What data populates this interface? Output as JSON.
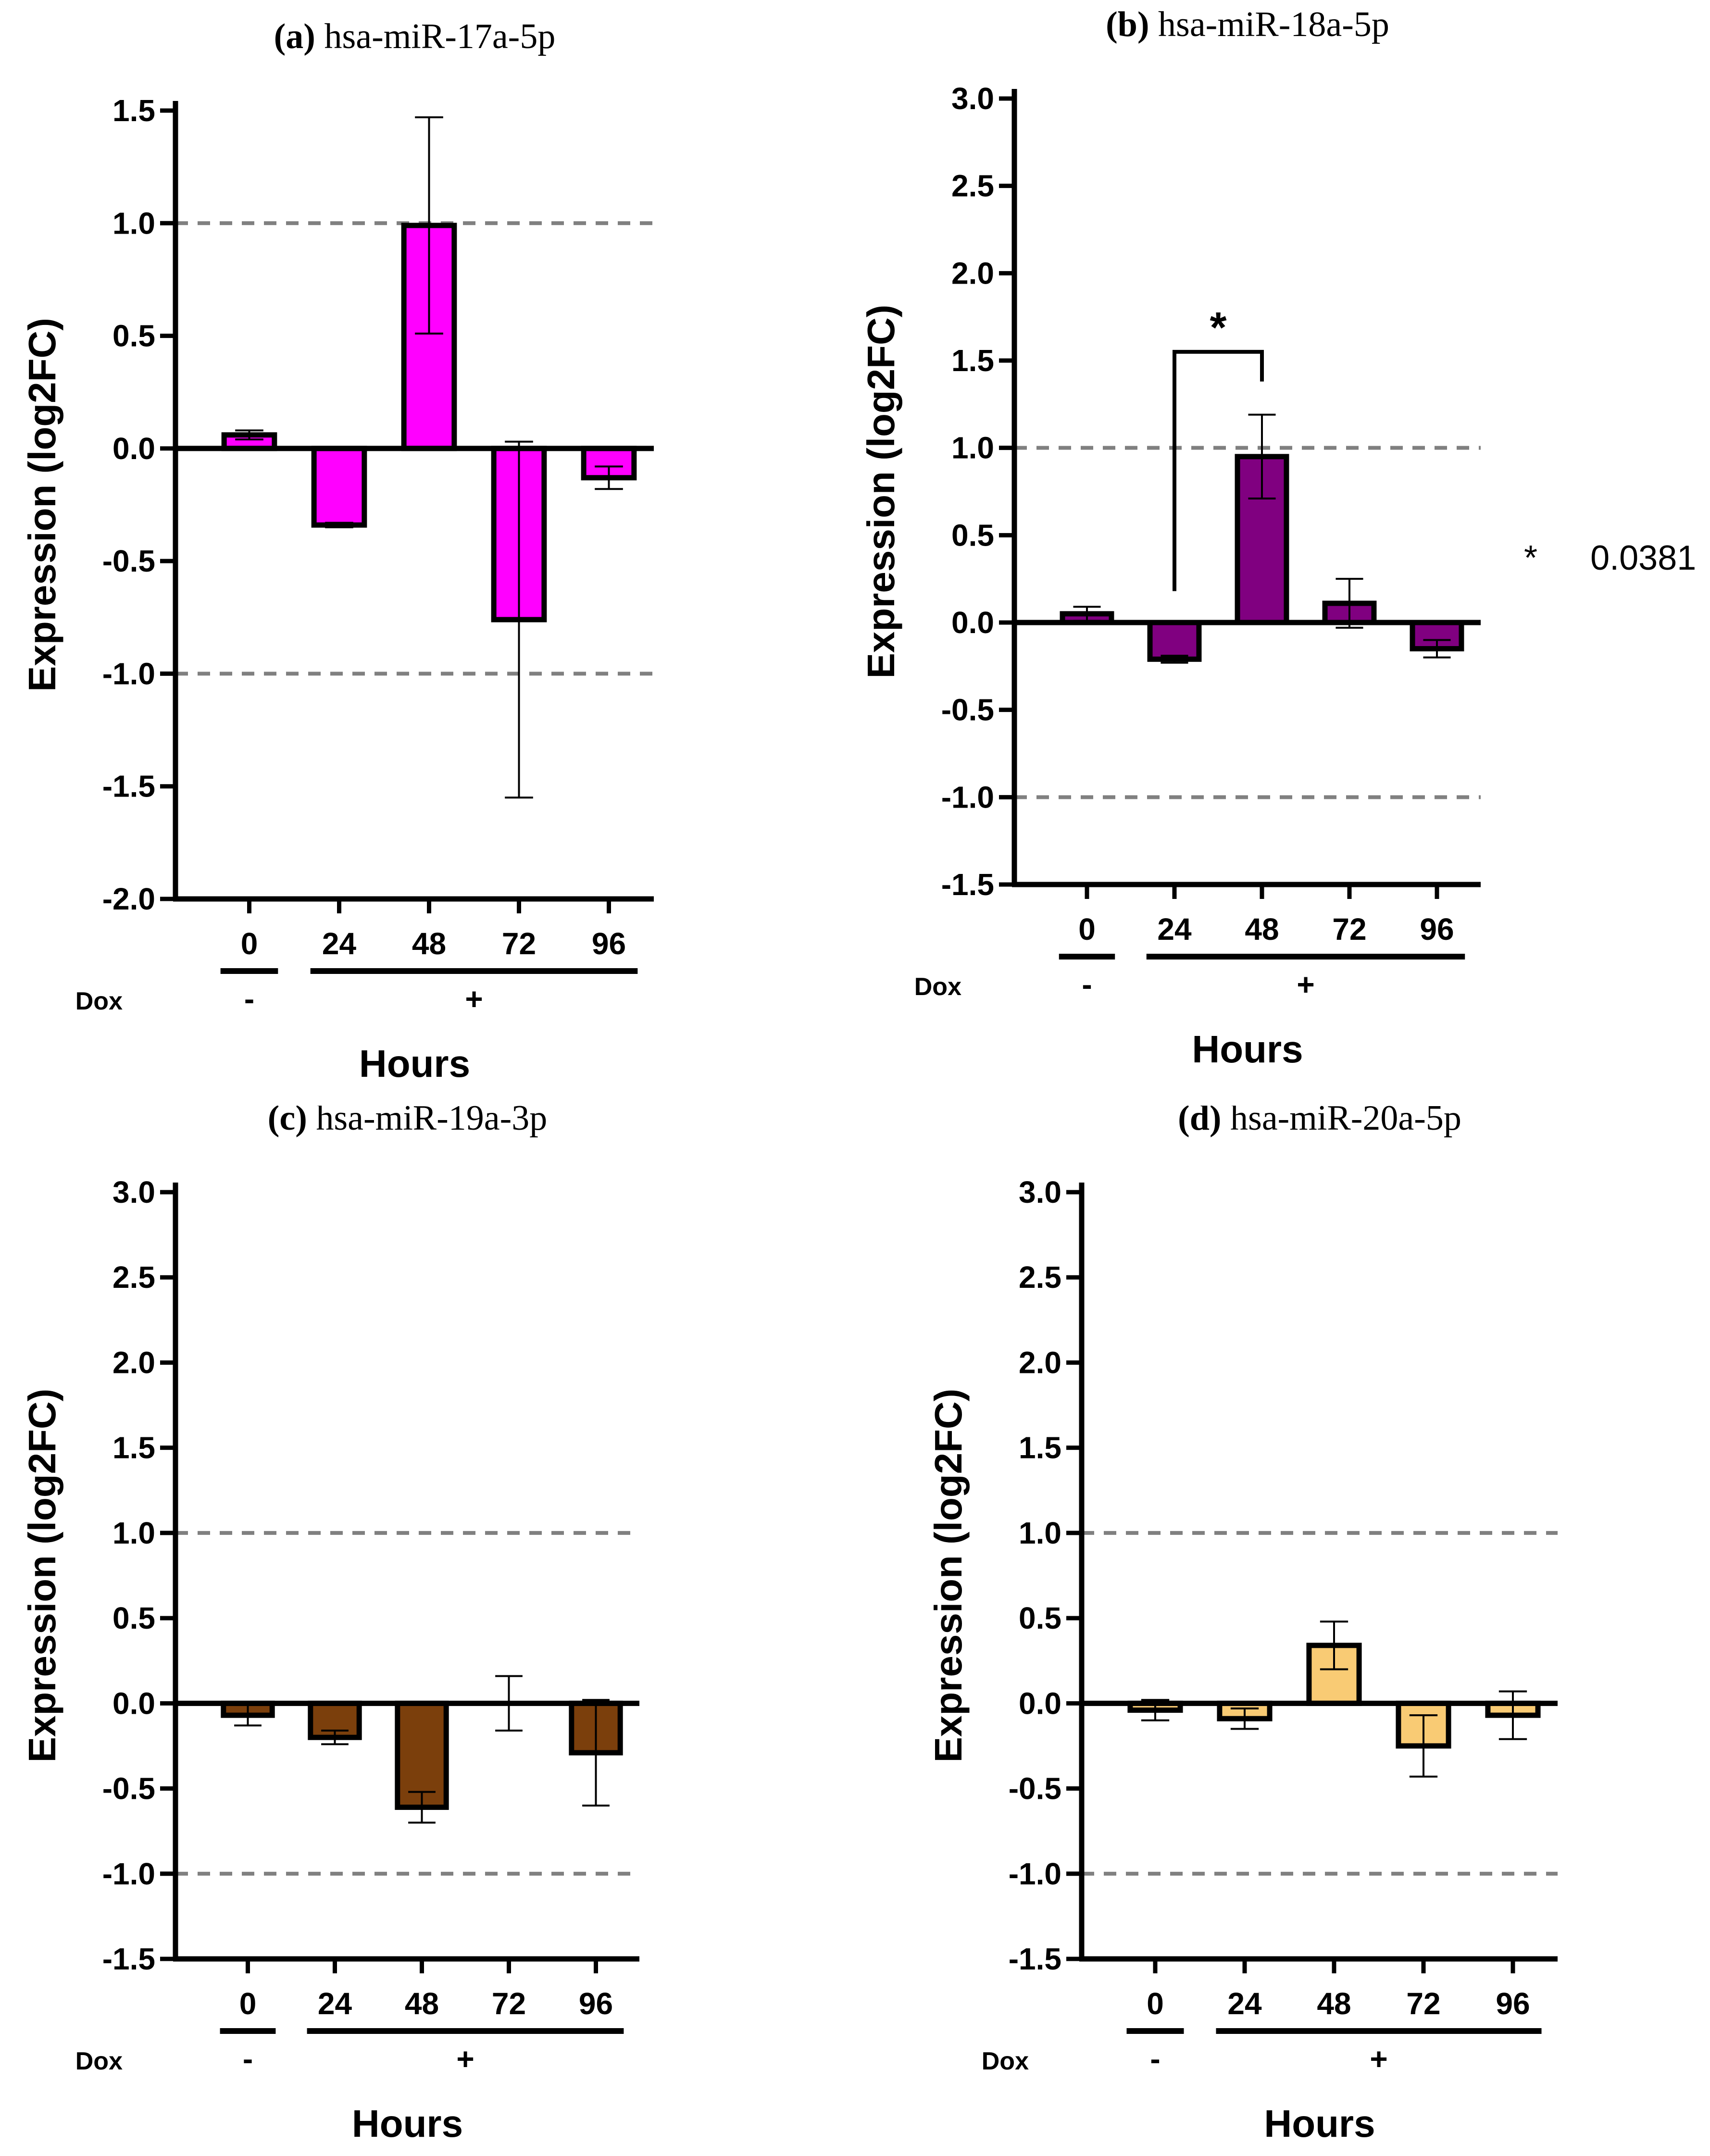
{
  "figure": {
    "hours_label": "Hours",
    "ylabel": "Expression (log2FC)",
    "dox_label": "Dox",
    "dox_minus": "-",
    "dox_plus": "+",
    "significance_note": {
      "symbol": "*",
      "value": "0.0381"
    }
  },
  "chart_data": [
    {
      "type": "bar",
      "panel": "a",
      "panel_label": "(a)",
      "title": "hsa-miR-17a-5p",
      "xlabel": "Hours",
      "ylabel": "Expression (log2FC)",
      "categories": [
        "0",
        "24",
        "48",
        "72",
        "96"
      ],
      "values": [
        0.06,
        -0.34,
        0.99,
        -0.76,
        -0.13
      ],
      "errors": [
        0.02,
        0.01,
        0.48,
        0.79,
        0.05
      ],
      "ylim": [
        -2.0,
        1.5
      ],
      "yticks": [
        "1.5",
        "1.0",
        "0.5",
        "0.0",
        "-0.5",
        "-1.0",
        "-1.5",
        "-2.0"
      ],
      "reference_lines": [
        1.0,
        -1.0
      ],
      "bar_color": "#ff00ff",
      "dox": [
        "-",
        "+",
        "+",
        "+",
        "+"
      ]
    },
    {
      "type": "bar",
      "panel": "b",
      "panel_label": "(b)",
      "title": "hsa-miR-18a-5p",
      "xlabel": "Hours",
      "ylabel": "Expression (log2FC)",
      "categories": [
        "0",
        "24",
        "48",
        "72",
        "96"
      ],
      "values": [
        0.05,
        -0.21,
        0.95,
        0.11,
        -0.15
      ],
      "errors": [
        0.04,
        0.02,
        0.24,
        0.14,
        0.05
      ],
      "ylim": [
        -1.5,
        3.0
      ],
      "yticks": [
        "3.0",
        "2.5",
        "2.0",
        "1.5",
        "1.0",
        "0.5",
        "0.0",
        "-0.5",
        "-1.0",
        "-1.5"
      ],
      "reference_lines": [
        1.0,
        -1.0
      ],
      "bar_color": "#800080",
      "dox": [
        "-",
        "+",
        "+",
        "+",
        "+"
      ],
      "significance": {
        "from": "24",
        "to": "48",
        "label": "*"
      }
    },
    {
      "type": "bar",
      "panel": "c",
      "panel_label": "(c)",
      "title": "hsa-miR-19a-3p",
      "xlabel": "Hours",
      "ylabel": "Expression (log2FC)",
      "categories": [
        "0",
        "24",
        "48",
        "72",
        "96"
      ],
      "values": [
        -0.07,
        -0.2,
        -0.61,
        0.0,
        -0.29
      ],
      "errors": [
        0.06,
        0.04,
        0.09,
        0.16,
        0.31
      ],
      "ylim": [
        -1.5,
        3.0
      ],
      "yticks": [
        "3.0",
        "2.5",
        "2.0",
        "1.5",
        "1.0",
        "0.5",
        "0.0",
        "-0.5",
        "-1.0",
        "-1.5"
      ],
      "reference_lines": [
        1.0,
        -1.0
      ],
      "bar_color": "#7b3f0c",
      "dox": [
        "-",
        "+",
        "+",
        "+",
        "+"
      ]
    },
    {
      "type": "bar",
      "panel": "d",
      "panel_label": "(d)",
      "title": "hsa-miR-20a-5p",
      "xlabel": "Hours",
      "ylabel": "Expression (log2FC)",
      "categories": [
        "0",
        "24",
        "48",
        "72",
        "96"
      ],
      "values": [
        -0.04,
        -0.09,
        0.34,
        -0.25,
        -0.07
      ],
      "errors": [
        0.06,
        0.06,
        0.14,
        0.18,
        0.14
      ],
      "ylim": [
        -1.5,
        3.0
      ],
      "yticks": [
        "3.0",
        "2.5",
        "2.0",
        "1.5",
        "1.0",
        "0.5",
        "0.0",
        "-0.5",
        "-1.0",
        "-1.5"
      ],
      "reference_lines": [
        1.0,
        -1.0
      ],
      "bar_color": "#f9cb74",
      "dox": [
        "-",
        "+",
        "+",
        "+",
        "+"
      ]
    }
  ]
}
